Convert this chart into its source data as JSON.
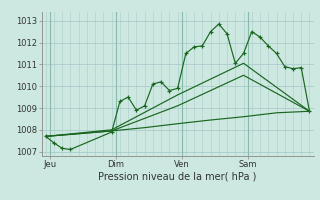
{
  "xlabel": "Pression niveau de la mer( hPa )",
  "background_color": "#cce8e0",
  "grid_color": "#aacccc",
  "line_color": "#1a6620",
  "day_sep_color": "#88bbaa",
  "ylim": [
    1006.8,
    1013.4
  ],
  "yticks": [
    1007,
    1008,
    1009,
    1010,
    1011,
    1012,
    1013
  ],
  "day_labels": [
    "Jeu",
    "Dim",
    "Ven",
    "Sam"
  ],
  "day_positions": [
    0.5,
    8.5,
    16.5,
    24.5
  ],
  "xlim": [
    -0.5,
    32.5
  ],
  "series1_x": [
    0,
    1,
    2,
    3,
    8,
    9,
    10,
    11,
    12,
    13,
    14,
    15,
    16,
    17,
    18,
    19,
    20,
    21,
    22,
    23,
    24,
    25,
    26,
    27,
    28,
    29,
    30,
    31,
    32
  ],
  "series1_y": [
    1007.7,
    1007.4,
    1007.15,
    1007.1,
    1007.9,
    1009.3,
    1009.5,
    1008.9,
    1009.1,
    1010.1,
    1010.2,
    1009.8,
    1009.9,
    1011.5,
    1011.8,
    1011.85,
    1012.5,
    1012.85,
    1012.4,
    1011.05,
    1011.5,
    1012.5,
    1012.25,
    1011.85,
    1011.5,
    1010.9,
    1010.8,
    1010.85,
    1008.85
  ],
  "series2_x": [
    0,
    8,
    16,
    24,
    32
  ],
  "series2_y": [
    1007.7,
    1008.0,
    1009.6,
    1011.05,
    1008.85
  ],
  "series3_x": [
    0,
    8,
    16,
    24,
    32
  ],
  "series3_y": [
    1007.7,
    1007.95,
    1009.1,
    1010.5,
    1008.85
  ],
  "series4_x": [
    0,
    4,
    8,
    12,
    16,
    20,
    24,
    28,
    32
  ],
  "series4_y": [
    1007.7,
    1007.82,
    1007.95,
    1008.1,
    1008.28,
    1008.45,
    1008.6,
    1008.78,
    1008.85
  ],
  "vline_positions": [
    0.5,
    8.5,
    16.5,
    24.5
  ],
  "tick_fontsize": 6,
  "xlabel_fontsize": 7
}
